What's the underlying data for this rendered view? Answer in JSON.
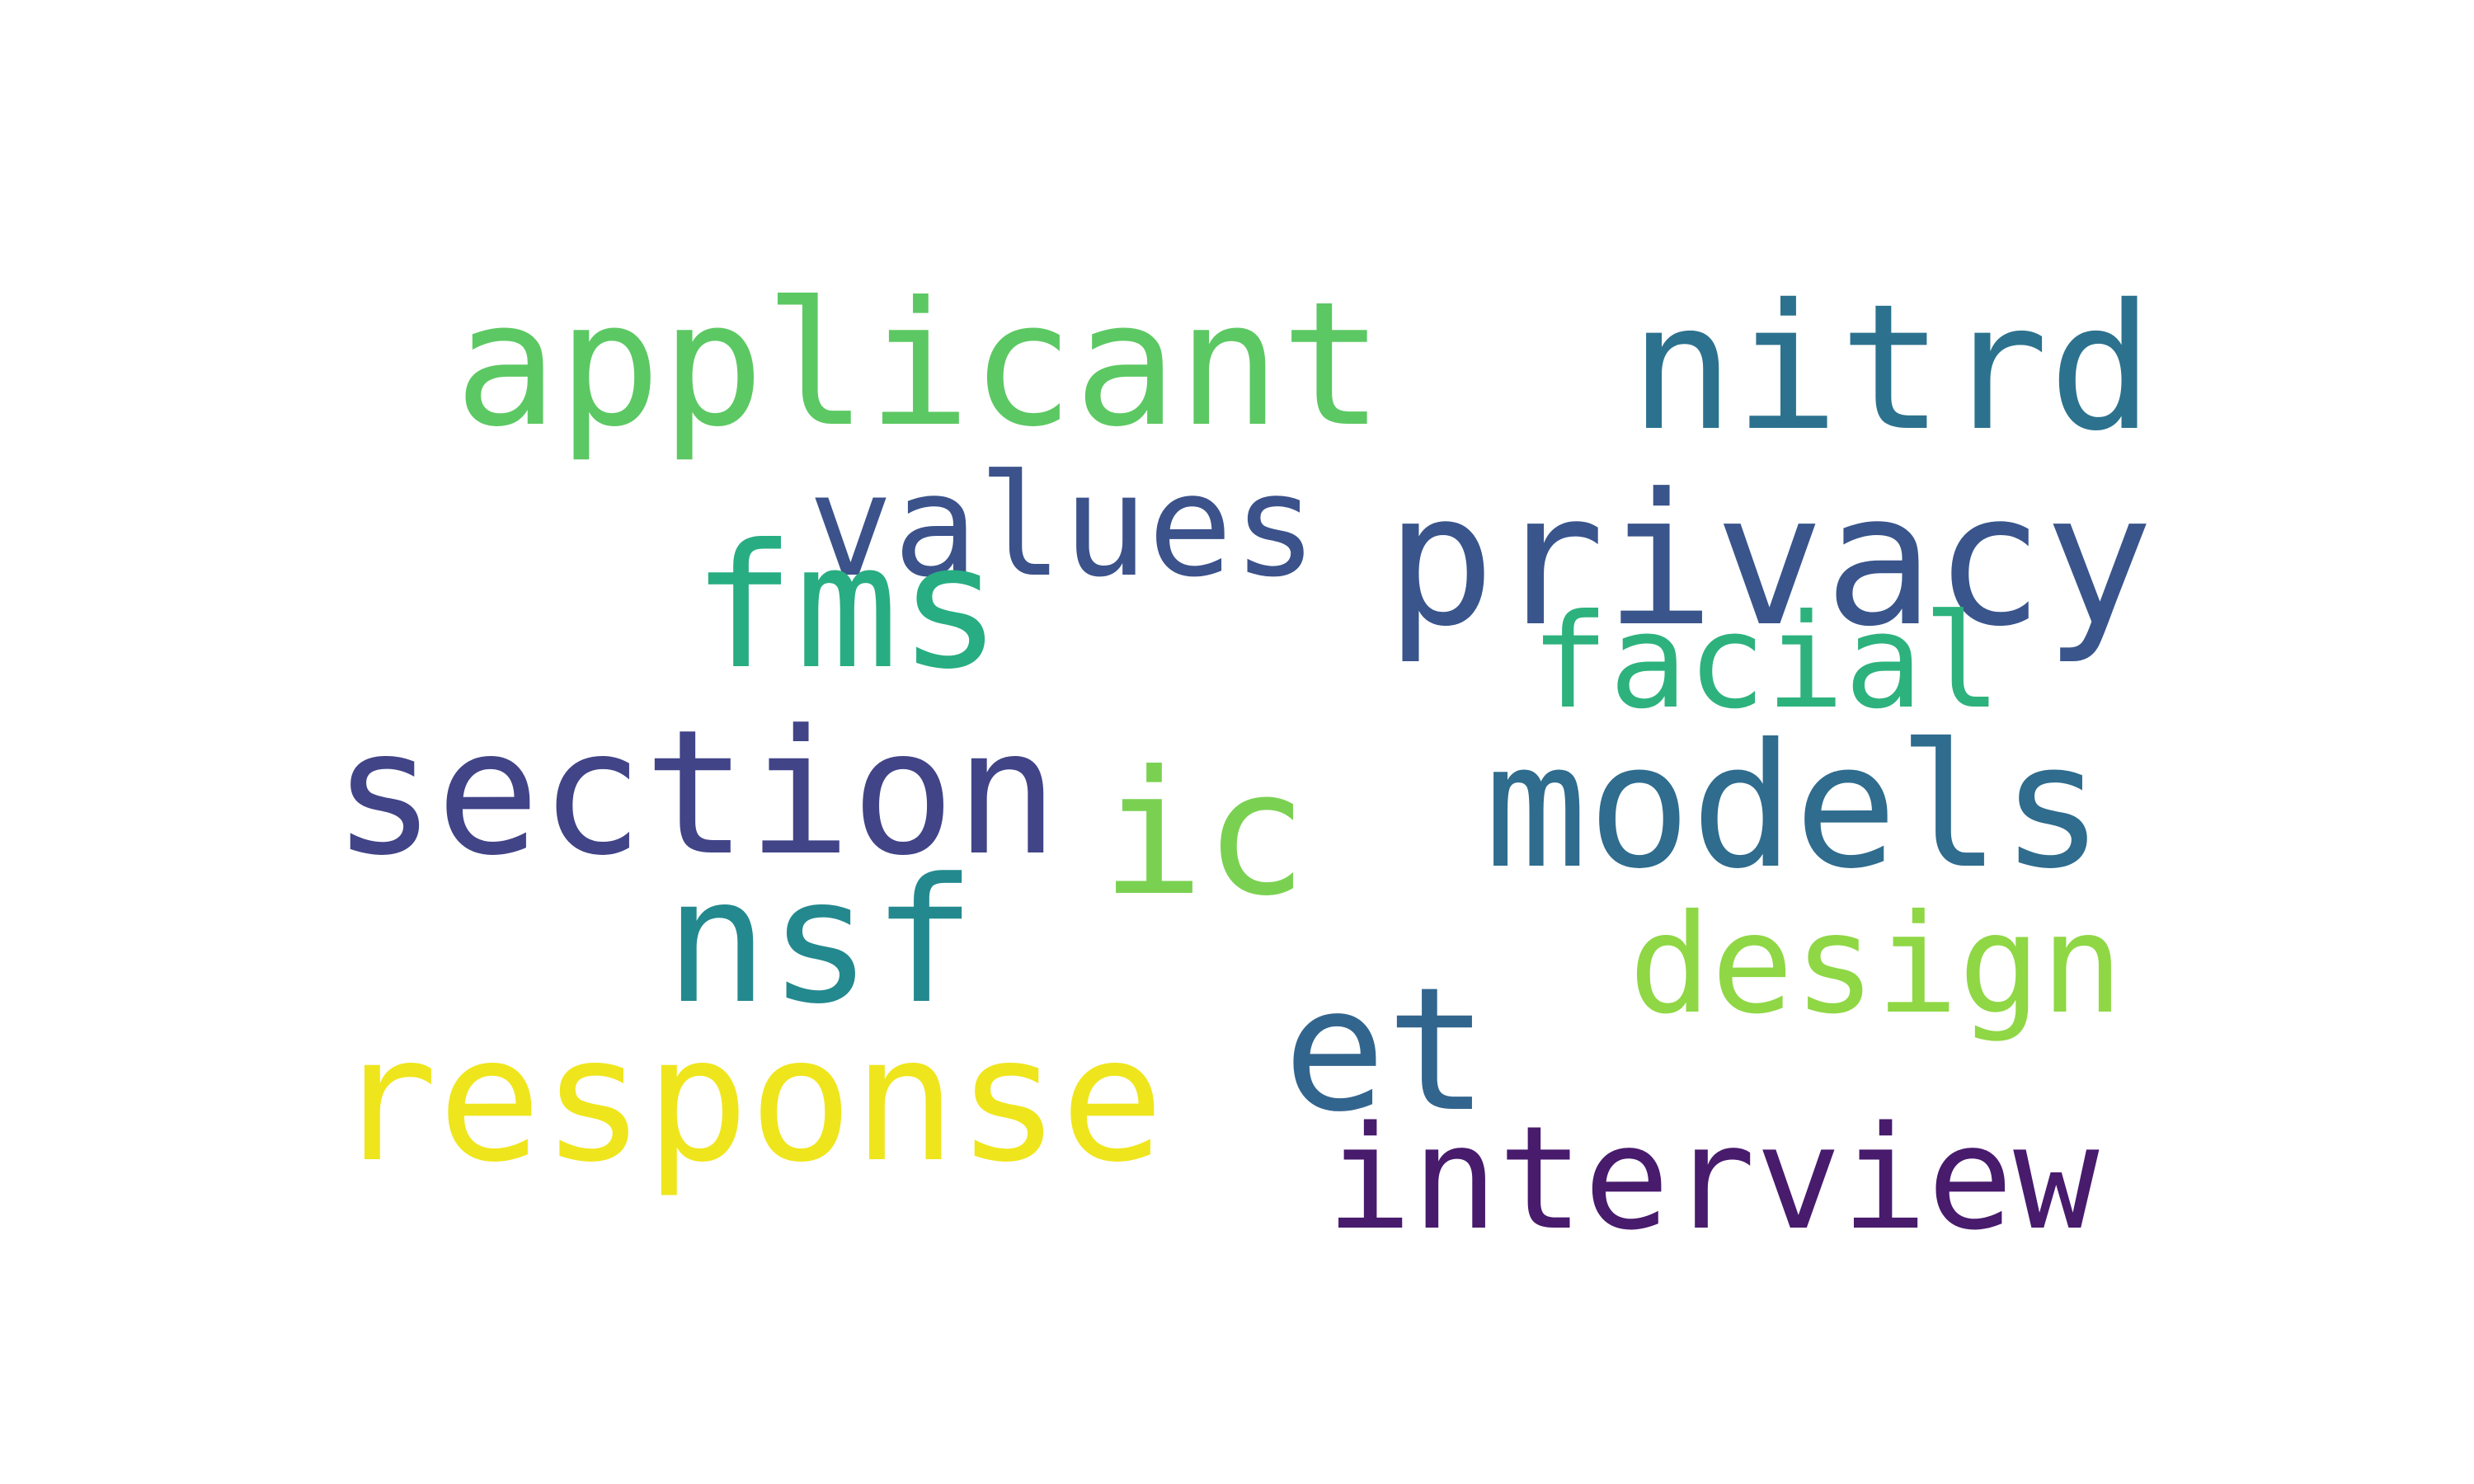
{
  "words": [
    {
      "id": "applicant",
      "text": "applicant",
      "color": "#5cc863"
    },
    {
      "id": "nitrd",
      "text": "nitrd",
      "color": "#2c728e"
    },
    {
      "id": "values",
      "text": "values",
      "color": "#3b528b"
    },
    {
      "id": "privacy",
      "text": "privacy",
      "color": "#39558c"
    },
    {
      "id": "fms",
      "text": "fms",
      "color": "#27ad81"
    },
    {
      "id": "facial",
      "text": "facial",
      "color": "#2db27d"
    },
    {
      "id": "section",
      "text": "section",
      "color": "#414487"
    },
    {
      "id": "ic",
      "text": "ic",
      "color": "#7ad151"
    },
    {
      "id": "models",
      "text": "models",
      "color": "#2f6c8e"
    },
    {
      "id": "nsf",
      "text": "nsf",
      "color": "#23898e"
    },
    {
      "id": "design",
      "text": "design",
      "color": "#8fd744"
    },
    {
      "id": "et",
      "text": "et",
      "color": "#32658e"
    },
    {
      "id": "response",
      "text": "response",
      "color": "#efe51c"
    },
    {
      "id": "interview",
      "text": "interview",
      "color": "#481b6d"
    }
  ]
}
